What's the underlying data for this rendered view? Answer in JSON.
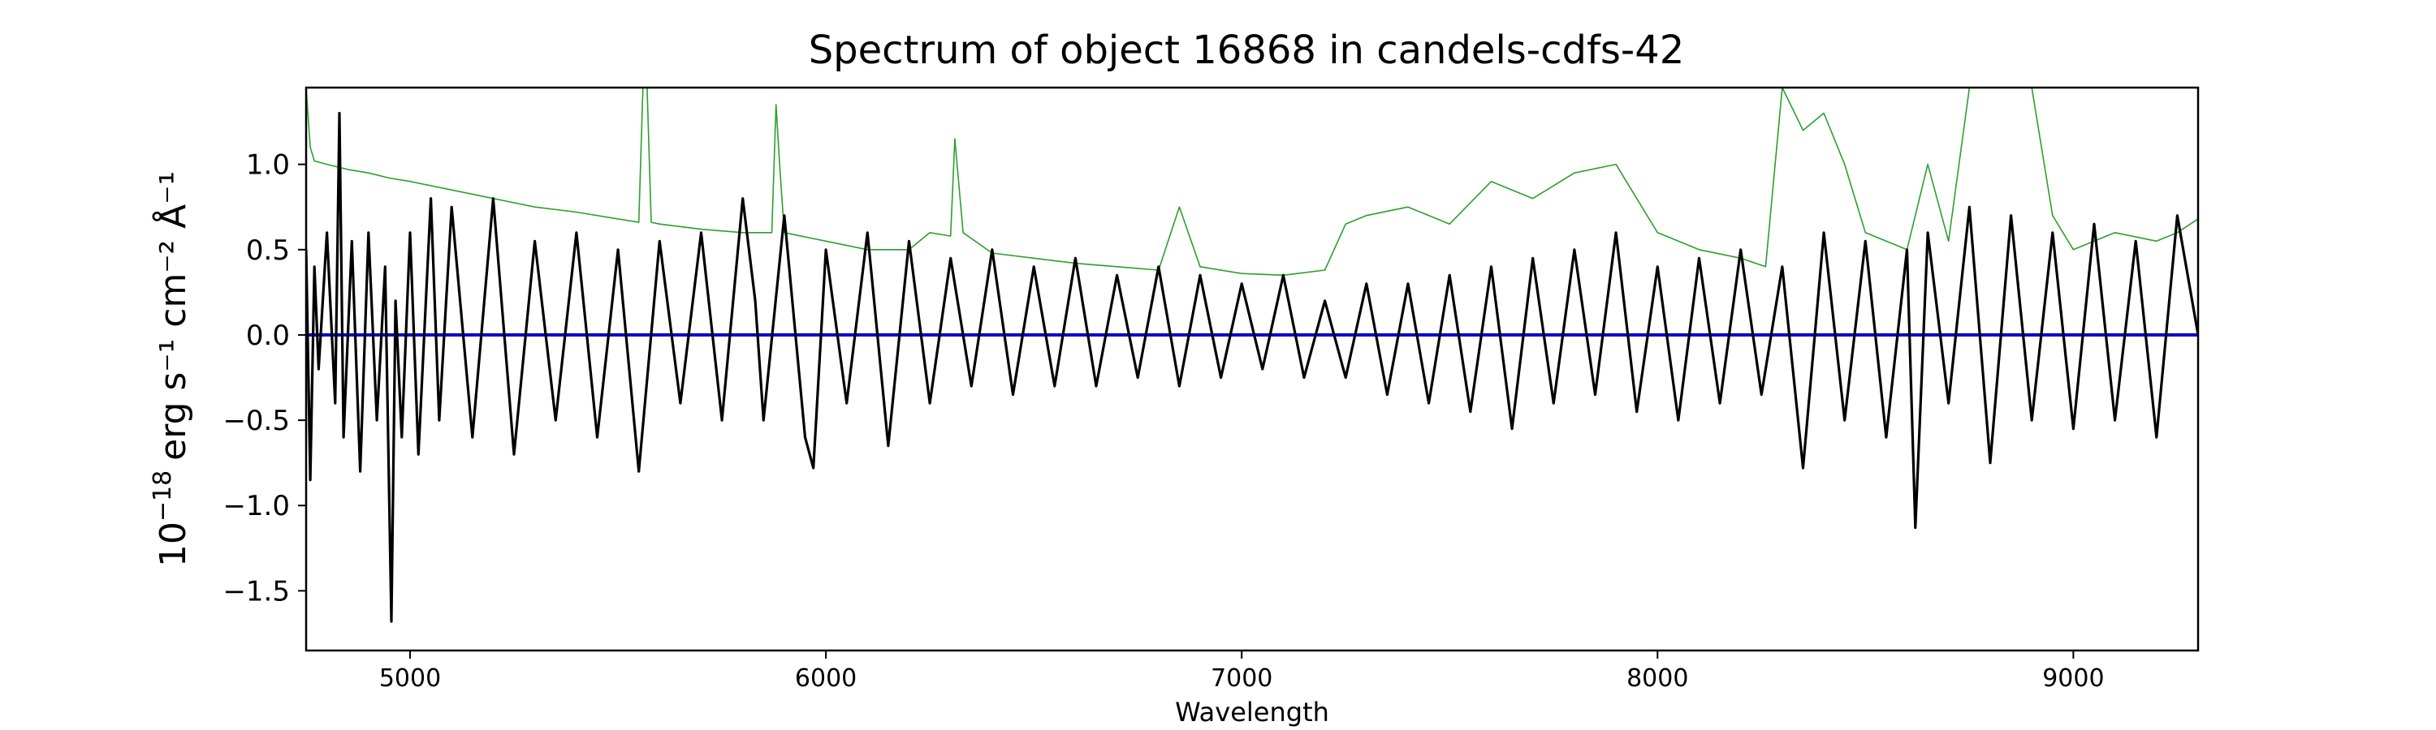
{
  "chart_data": {
    "type": "line",
    "title": "Spectrum of object 16868 in candels-cdfs-42",
    "xlabel": "Wavelength",
    "ylabel": {
      "base": "10",
      "exp": "−18",
      "unit": "erg s⁻¹ cm⁻² Å⁻¹"
    },
    "xlim": [
      4750,
      9300
    ],
    "ylim": [
      -1.85,
      1.45
    ],
    "xticks": [
      5000,
      6000,
      7000,
      8000,
      9000
    ],
    "xtick_labels": [
      "5000",
      "6000",
      "7000",
      "8000",
      "9000"
    ],
    "yticks": [
      -1.5,
      -1.0,
      -0.5,
      0.0,
      0.5,
      1.0
    ],
    "ytick_labels": [
      "−1.5",
      "−1.0",
      "−0.5",
      "0.0",
      "0.5",
      "1.0"
    ],
    "grid": false,
    "colors": {
      "flux": "#000000",
      "error": "#2ca02c",
      "zero": "#0000cc"
    },
    "series": [
      {
        "role": "flux",
        "x": [
          4750,
          4760,
          4770,
          4780,
          4800,
          4820,
          4830,
          4840,
          4860,
          4880,
          4900,
          4920,
          4940,
          4955,
          4965,
          4980,
          5000,
          5020,
          5050,
          5070,
          5100,
          5150,
          5200,
          5250,
          5300,
          5350,
          5400,
          5450,
          5500,
          5550,
          5600,
          5650,
          5700,
          5750,
          5800,
          5830,
          5850,
          5900,
          5950,
          5970,
          6000,
          6050,
          6100,
          6150,
          6200,
          6250,
          6300,
          6350,
          6400,
          6450,
          6500,
          6550,
          6600,
          6650,
          6700,
          6750,
          6800,
          6850,
          6900,
          6950,
          7000,
          7050,
          7100,
          7150,
          7200,
          7250,
          7300,
          7350,
          7400,
          7450,
          7500,
          7550,
          7600,
          7650,
          7700,
          7750,
          7800,
          7850,
          7900,
          7950,
          8000,
          8050,
          8100,
          8150,
          8200,
          8250,
          8300,
          8350,
          8400,
          8450,
          8500,
          8550,
          8600,
          8620,
          8650,
          8700,
          8750,
          8800,
          8850,
          8900,
          8950,
          9000,
          9050,
          9100,
          9150,
          9200,
          9250,
          9300
        ],
        "y": [
          0.5,
          -0.85,
          0.4,
          -0.2,
          0.6,
          -0.4,
          1.3,
          -0.6,
          0.55,
          -0.8,
          0.6,
          -0.5,
          0.4,
          -1.68,
          0.2,
          -0.6,
          0.6,
          -0.7,
          0.8,
          -0.5,
          0.75,
          -0.6,
          0.8,
          -0.7,
          0.55,
          -0.5,
          0.6,
          -0.6,
          0.5,
          -0.8,
          0.55,
          -0.4,
          0.6,
          -0.5,
          0.8,
          0.2,
          -0.5,
          0.7,
          -0.6,
          -0.78,
          0.5,
          -0.4,
          0.6,
          -0.65,
          0.55,
          -0.4,
          0.45,
          -0.3,
          0.5,
          -0.35,
          0.4,
          -0.3,
          0.45,
          -0.3,
          0.35,
          -0.25,
          0.4,
          -0.3,
          0.35,
          -0.25,
          0.3,
          -0.2,
          0.35,
          -0.25,
          0.2,
          -0.25,
          0.3,
          -0.35,
          0.3,
          -0.4,
          0.35,
          -0.45,
          0.4,
          -0.55,
          0.45,
          -0.4,
          0.5,
          -0.35,
          0.6,
          -0.45,
          0.4,
          -0.5,
          0.45,
          -0.4,
          0.5,
          -0.35,
          0.4,
          -0.78,
          0.6,
          -0.5,
          0.55,
          -0.6,
          0.5,
          -1.13,
          0.6,
          -0.4,
          0.75,
          -0.75,
          0.7,
          -0.5,
          0.6,
          -0.55,
          0.65,
          -0.5,
          0.55,
          -0.6,
          0.7,
          0.0
        ]
      },
      {
        "role": "error",
        "x": [
          4750,
          4760,
          4770,
          4800,
          4850,
          4900,
          4950,
          5000,
          5100,
          5200,
          5300,
          5400,
          5500,
          5550,
          5560,
          5570,
          5580,
          5600,
          5700,
          5800,
          5870,
          5880,
          5890,
          5900,
          6000,
          6100,
          6200,
          6250,
          6300,
          6310,
          6330,
          6400,
          6500,
          6600,
          6700,
          6800,
          6850,
          6900,
          7000,
          7100,
          7200,
          7250,
          7300,
          7400,
          7500,
          7600,
          7700,
          7800,
          7900,
          8000,
          8100,
          8200,
          8260,
          8300,
          8350,
          8400,
          8450,
          8500,
          8600,
          8650,
          8700,
          8750,
          8800,
          8850,
          8900,
          8950,
          9000,
          9100,
          9200,
          9250,
          9300
        ],
        "y": [
          1.45,
          1.1,
          1.02,
          1.0,
          0.97,
          0.95,
          0.92,
          0.9,
          0.85,
          0.8,
          0.75,
          0.72,
          0.68,
          0.66,
          1.45,
          1.45,
          0.66,
          0.65,
          0.62,
          0.6,
          0.6,
          1.35,
          0.95,
          0.6,
          0.55,
          0.5,
          0.5,
          0.6,
          0.58,
          1.15,
          0.6,
          0.48,
          0.45,
          0.42,
          0.4,
          0.38,
          0.75,
          0.4,
          0.36,
          0.35,
          0.38,
          0.65,
          0.7,
          0.75,
          0.65,
          0.9,
          0.8,
          0.95,
          1.0,
          0.6,
          0.5,
          0.45,
          0.4,
          1.45,
          1.2,
          1.3,
          1.0,
          0.6,
          0.5,
          1.0,
          0.55,
          1.45,
          1.45,
          1.45,
          1.45,
          0.7,
          0.5,
          0.6,
          0.55,
          0.6,
          0.68
        ]
      },
      {
        "role": "zero",
        "x": [
          4750,
          9300
        ],
        "y": [
          0.0,
          0.0
        ]
      }
    ]
  }
}
